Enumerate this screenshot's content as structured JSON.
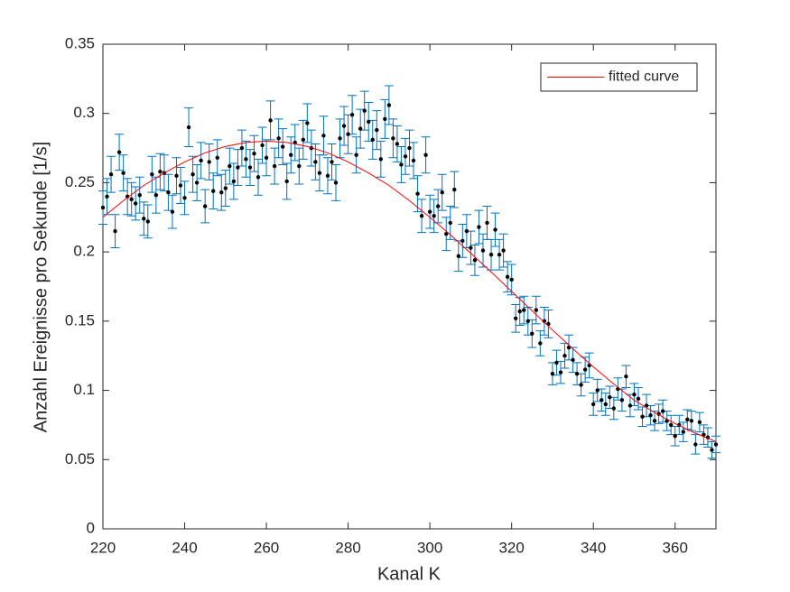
{
  "chart_data": {
    "type": "scatter",
    "x_label": "Kanal K",
    "y_label": "Anzahl Ereignisse pro Sekunde [1/s]",
    "xlim": [
      220,
      370
    ],
    "xticks": [
      220,
      240,
      260,
      280,
      300,
      320,
      340,
      360
    ],
    "ylim": [
      0,
      0.35
    ],
    "yticks": [
      0,
      0.05,
      0.1,
      0.15,
      0.2,
      0.25,
      0.3,
      0.35
    ],
    "legend_position": "northeast",
    "series": [
      {
        "color": "#0072bd",
        "marker_color": "#000000",
        "x": [
          220,
          221,
          222,
          223,
          224,
          225,
          226,
          227,
          228,
          229,
          230,
          231,
          232,
          233,
          234,
          235,
          236,
          237,
          238,
          239,
          240,
          241,
          242,
          243,
          244,
          245,
          246,
          247,
          248,
          249,
          250,
          251,
          252,
          253,
          254,
          255,
          256,
          257,
          258,
          259,
          260,
          261,
          262,
          263,
          264,
          265,
          266,
          267,
          268,
          269,
          270,
          271,
          272,
          273,
          274,
          275,
          276,
          277,
          278,
          279,
          280,
          281,
          282,
          283,
          284,
          285,
          286,
          287,
          288,
          289,
          290,
          291,
          292,
          293,
          294,
          295,
          296,
          297,
          298,
          299,
          300,
          301,
          302,
          303,
          304,
          305,
          306,
          307,
          308,
          309,
          310,
          311,
          312,
          313,
          314,
          315,
          316,
          317,
          318,
          319,
          320,
          321,
          322,
          323,
          324,
          325,
          326,
          327,
          328,
          329,
          330,
          331,
          332,
          333,
          334,
          335,
          336,
          337,
          338,
          339,
          340,
          341,
          342,
          343,
          344,
          345,
          346,
          347,
          348,
          349,
          350,
          351,
          352,
          353,
          354,
          355,
          356,
          357,
          358,
          359,
          360,
          361,
          362,
          363,
          364,
          365,
          366,
          367,
          368,
          369,
          370
        ],
        "values": [
          0.232,
          0.24,
          0.256,
          0.215,
          0.272,
          0.257,
          0.24,
          0.238,
          0.235,
          0.241,
          0.224,
          0.222,
          0.256,
          0.241,
          0.258,
          0.257,
          0.243,
          0.229,
          0.255,
          0.248,
          0.239,
          0.29,
          0.256,
          0.25,
          0.266,
          0.233,
          0.265,
          0.244,
          0.268,
          0.243,
          0.246,
          0.262,
          0.251,
          0.261,
          0.275,
          0.267,
          0.261,
          0.271,
          0.254,
          0.277,
          0.268,
          0.295,
          0.262,
          0.282,
          0.276,
          0.251,
          0.27,
          0.279,
          0.262,
          0.281,
          0.293,
          0.275,
          0.265,
          0.257,
          0.284,
          0.255,
          0.265,
          0.25,
          0.282,
          0.291,
          0.285,
          0.299,
          0.27,
          0.289,
          0.302,
          0.294,
          0.281,
          0.288,
          0.267,
          0.296,
          0.306,
          0.282,
          0.278,
          0.263,
          0.269,
          0.275,
          0.266,
          0.242,
          0.226,
          0.27,
          0.229,
          0.226,
          0.233,
          0.243,
          0.213,
          0.221,
          0.245,
          0.197,
          0.208,
          0.215,
          0.203,
          0.194,
          0.218,
          0.201,
          0.221,
          0.198,
          0.216,
          0.198,
          0.201,
          0.182,
          0.18,
          0.152,
          0.157,
          0.158,
          0.15,
          0.141,
          0.158,
          0.134,
          0.15,
          0.148,
          0.112,
          0.12,
          0.113,
          0.125,
          0.131,
          0.122,
          0.112,
          0.104,
          0.115,
          0.118,
          0.09,
          0.1,
          0.093,
          0.09,
          0.095,
          0.087,
          0.101,
          0.093,
          0.11,
          0.089,
          0.097,
          0.094,
          0.081,
          0.089,
          0.082,
          0.078,
          0.083,
          0.085,
          0.078,
          0.075,
          0.067,
          0.075,
          0.07,
          0.079,
          0.078,
          0.061,
          0.077,
          0.068,
          0.066,
          0.057,
          0.061
        ],
        "errors": [
          0.012,
          0.013,
          0.013,
          0.012,
          0.013,
          0.013,
          0.013,
          0.012,
          0.012,
          0.013,
          0.012,
          0.012,
          0.013,
          0.013,
          0.013,
          0.013,
          0.013,
          0.012,
          0.013,
          0.013,
          0.012,
          0.014,
          0.013,
          0.013,
          0.013,
          0.012,
          0.013,
          0.013,
          0.013,
          0.013,
          0.013,
          0.013,
          0.013,
          0.013,
          0.013,
          0.013,
          0.013,
          0.013,
          0.013,
          0.013,
          0.013,
          0.014,
          0.013,
          0.014,
          0.013,
          0.013,
          0.013,
          0.013,
          0.013,
          0.014,
          0.014,
          0.013,
          0.013,
          0.013,
          0.014,
          0.013,
          0.013,
          0.013,
          0.014,
          0.014,
          0.014,
          0.014,
          0.013,
          0.014,
          0.014,
          0.014,
          0.014,
          0.014,
          0.013,
          0.014,
          0.014,
          0.014,
          0.013,
          0.013,
          0.013,
          0.013,
          0.013,
          0.013,
          0.012,
          0.013,
          0.012,
          0.012,
          0.012,
          0.013,
          0.012,
          0.012,
          0.013,
          0.011,
          0.012,
          0.012,
          0.012,
          0.011,
          0.012,
          0.012,
          0.012,
          0.011,
          0.012,
          0.011,
          0.012,
          0.011,
          0.011,
          0.01,
          0.01,
          0.01,
          0.01,
          0.01,
          0.01,
          0.009,
          0.01,
          0.01,
          0.008,
          0.009,
          0.008,
          0.009,
          0.009,
          0.009,
          0.008,
          0.008,
          0.009,
          0.009,
          0.008,
          0.008,
          0.008,
          0.008,
          0.008,
          0.008,
          0.008,
          0.008,
          0.008,
          0.008,
          0.008,
          0.008,
          0.007,
          0.008,
          0.007,
          0.007,
          0.007,
          0.008,
          0.007,
          0.007,
          0.007,
          0.007,
          0.007,
          0.007,
          0.007,
          0.007,
          0.007,
          0.007,
          0.007,
          0.006,
          0.006
        ]
      },
      {
        "name": "fitted curve",
        "color": "#ff0000",
        "x": [
          220,
          225,
          230,
          235,
          240,
          245,
          250,
          255,
          260,
          265,
          270,
          275,
          280,
          285,
          290,
          295,
          300,
          305,
          310,
          315,
          320,
          325,
          330,
          335,
          340,
          345,
          350,
          355,
          360,
          365,
          370
        ],
        "values": [
          0.225,
          0.237,
          0.248,
          0.257,
          0.265,
          0.2715,
          0.2762,
          0.279,
          0.28,
          0.279,
          0.2762,
          0.2715,
          0.265,
          0.257,
          0.248,
          0.237,
          0.225,
          0.2125,
          0.199,
          0.1855,
          0.1715,
          0.1575,
          0.1436,
          0.13,
          0.117,
          0.1046,
          0.0929,
          0.084,
          0.076,
          0.069,
          0.063
        ]
      }
    ]
  }
}
